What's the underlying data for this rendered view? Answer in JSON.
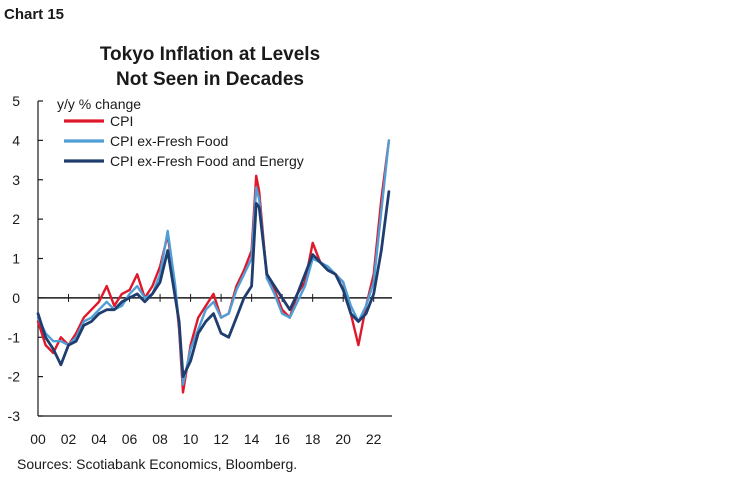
{
  "header": {
    "chart_number": "Chart 15"
  },
  "footer": {
    "source": "Sources: Scotiabank Economics, Bloomberg."
  },
  "chart_data": {
    "type": "line",
    "title": "Tokyo Inflation at Levels Not Seen in Decades",
    "title_lines": [
      "Tokyo Inflation at Levels",
      "Not Seen in Decades"
    ],
    "ylabel": "y/y % change",
    "xlabel": "",
    "ylim": [
      -3,
      5
    ],
    "yticks": [
      5,
      4,
      3,
      2,
      1,
      0,
      -1,
      -2,
      -3
    ],
    "xlim": [
      2000,
      2023.2
    ],
    "xticks": [
      "00",
      "02",
      "04",
      "06",
      "08",
      "10",
      "12",
      "14",
      "16",
      "18",
      "20",
      "22"
    ],
    "legend_position": "top-left",
    "colors": {
      "CPI": "#e0182b",
      "CPI ex-Fresh Food": "#4f9fd6",
      "CPI ex-Fresh Food and Energy": "#1f3d6e",
      "axis": "#1a1a1a"
    },
    "series": [
      {
        "name": "CPI",
        "x": [
          2000.0,
          2000.5,
          2001.0,
          2001.5,
          2002.0,
          2002.5,
          2003.0,
          2003.5,
          2004.0,
          2004.5,
          2005.0,
          2005.5,
          2006.0,
          2006.5,
          2007.0,
          2007.5,
          2008.0,
          2008.5,
          2009.0,
          2009.25,
          2009.5,
          2010.0,
          2010.5,
          2011.0,
          2011.5,
          2012.0,
          2012.5,
          2013.0,
          2013.5,
          2014.0,
          2014.3,
          2014.5,
          2015.0,
          2015.5,
          2016.0,
          2016.5,
          2017.0,
          2017.5,
          2018.0,
          2018.5,
          2019.0,
          2019.5,
          2020.0,
          2020.5,
          2021.0,
          2021.5,
          2022.0,
          2022.5,
          2023.0
        ],
        "y": [
          -0.6,
          -1.2,
          -1.4,
          -1.0,
          -1.2,
          -0.9,
          -0.5,
          -0.3,
          -0.1,
          0.3,
          -0.2,
          0.1,
          0.2,
          0.6,
          0.0,
          0.3,
          0.8,
          1.6,
          0.2,
          -0.8,
          -2.4,
          -1.2,
          -0.5,
          -0.2,
          0.1,
          -0.5,
          -0.4,
          0.3,
          0.7,
          1.2,
          3.1,
          2.7,
          0.5,
          0.2,
          -0.3,
          -0.5,
          0.1,
          0.4,
          1.4,
          0.9,
          0.7,
          0.6,
          0.4,
          -0.4,
          -1.2,
          -0.2,
          0.6,
          2.5,
          4.0
        ]
      },
      {
        "name": "CPI ex-Fresh Food",
        "x": [
          2000.0,
          2000.5,
          2001.0,
          2001.5,
          2002.0,
          2002.5,
          2003.0,
          2003.5,
          2004.0,
          2004.5,
          2005.0,
          2005.5,
          2006.0,
          2006.5,
          2007.0,
          2007.5,
          2008.0,
          2008.5,
          2009.0,
          2009.25,
          2009.5,
          2010.0,
          2010.5,
          2011.0,
          2011.5,
          2012.0,
          2012.5,
          2013.0,
          2013.5,
          2014.0,
          2014.3,
          2014.5,
          2015.0,
          2015.5,
          2016.0,
          2016.5,
          2017.0,
          2017.5,
          2018.0,
          2018.5,
          2019.0,
          2019.5,
          2020.0,
          2020.5,
          2021.0,
          2021.5,
          2022.0,
          2022.5,
          2023.0
        ],
        "y": [
          -0.5,
          -0.9,
          -1.1,
          -1.1,
          -1.2,
          -1.0,
          -0.6,
          -0.5,
          -0.3,
          -0.1,
          -0.3,
          -0.2,
          0.1,
          0.3,
          0.0,
          0.1,
          0.6,
          1.7,
          0.3,
          -0.7,
          -2.2,
          -1.3,
          -0.8,
          -0.3,
          -0.1,
          -0.5,
          -0.4,
          0.2,
          0.6,
          1.0,
          2.8,
          2.5,
          0.5,
          0.1,
          -0.4,
          -0.5,
          -0.1,
          0.3,
          1.0,
          0.9,
          0.8,
          0.6,
          0.4,
          -0.2,
          -0.6,
          -0.2,
          0.4,
          2.2,
          4.0
        ]
      },
      {
        "name": "CPI ex-Fresh Food and Energy",
        "x": [
          2000.0,
          2000.5,
          2001.0,
          2001.5,
          2002.0,
          2002.5,
          2003.0,
          2003.5,
          2004.0,
          2004.5,
          2005.0,
          2005.5,
          2006.0,
          2006.5,
          2007.0,
          2007.5,
          2008.0,
          2008.5,
          2009.0,
          2009.25,
          2009.5,
          2010.0,
          2010.5,
          2011.0,
          2011.5,
          2012.0,
          2012.5,
          2013.0,
          2013.5,
          2014.0,
          2014.3,
          2014.5,
          2015.0,
          2015.5,
          2016.0,
          2016.5,
          2017.0,
          2017.5,
          2018.0,
          2018.5,
          2019.0,
          2019.5,
          2020.0,
          2020.5,
          2021.0,
          2021.5,
          2022.0,
          2022.5,
          2023.0
        ],
        "y": [
          -0.4,
          -1.0,
          -1.3,
          -1.7,
          -1.2,
          -1.1,
          -0.7,
          -0.6,
          -0.4,
          -0.3,
          -0.3,
          -0.1,
          0.0,
          0.1,
          -0.1,
          0.1,
          0.4,
          1.2,
          0.0,
          -0.6,
          -2.0,
          -1.6,
          -0.9,
          -0.6,
          -0.4,
          -0.9,
          -1.0,
          -0.5,
          0.0,
          0.3,
          2.4,
          2.3,
          0.6,
          0.3,
          0.0,
          -0.3,
          0.1,
          0.6,
          1.1,
          0.9,
          0.7,
          0.6,
          0.2,
          -0.4,
          -0.6,
          -0.4,
          0.1,
          1.2,
          2.7
        ]
      }
    ]
  }
}
